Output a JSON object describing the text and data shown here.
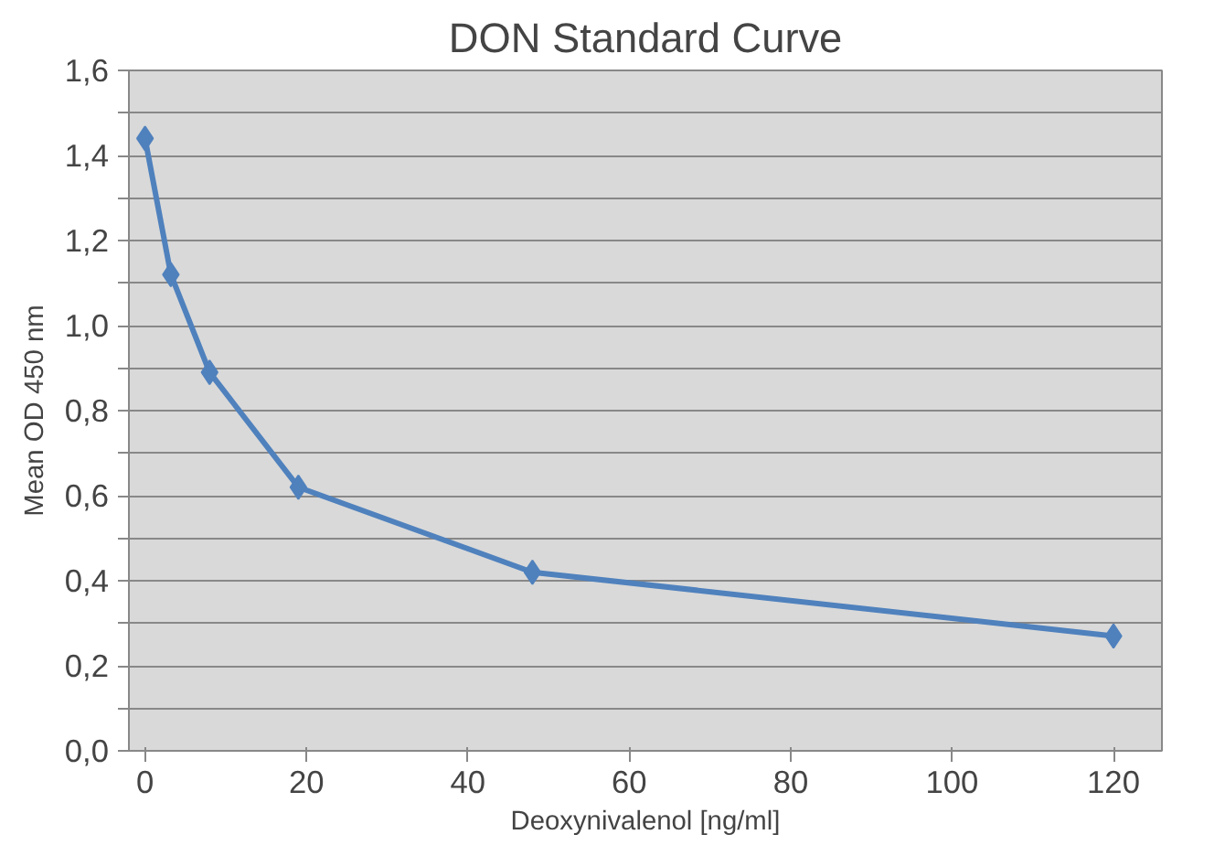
{
  "chart_data": {
    "type": "line",
    "title": "DON Standard Curve",
    "xlabel": "Deoxynivalenol [ng/ml]",
    "ylabel": "Mean OD 450 nm",
    "x": [
      0,
      3.2,
      8,
      19,
      48,
      120
    ],
    "series": [
      {
        "color": "#4f81bd",
        "values": [
          1.44,
          1.12,
          0.89,
          0.62,
          0.42,
          0.27
        ]
      }
    ],
    "marker": "diamond",
    "line_style": "solid",
    "grid": "y",
    "xlim": [
      -2,
      126
    ],
    "xticks": [
      0,
      20,
      40,
      60,
      80,
      100,
      120
    ],
    "ylim": [
      0,
      1.6
    ],
    "yticks": [
      {
        "value": 0,
        "label": "0,0"
      },
      {
        "value": 0.1,
        "label": null
      },
      {
        "value": 0.2,
        "label": "0,2"
      },
      {
        "value": 0.3,
        "label": null
      },
      {
        "value": 0.4,
        "label": "0,4"
      },
      {
        "value": 0.5,
        "label": null
      },
      {
        "value": 0.6,
        "label": "0,6"
      },
      {
        "value": 0.7,
        "label": null
      },
      {
        "value": 0.8,
        "label": "0,8"
      },
      {
        "value": 0.9,
        "label": null
      },
      {
        "value": 1.0,
        "label": "1,0"
      },
      {
        "value": 1.1,
        "label": null
      },
      {
        "value": 1.2,
        "label": "1,2"
      },
      {
        "value": 1.3,
        "label": null
      },
      {
        "value": 1.4,
        "label": "1,4"
      },
      {
        "value": 1.5,
        "label": null
      },
      {
        "value": 1.6,
        "label": "1,6"
      }
    ]
  }
}
